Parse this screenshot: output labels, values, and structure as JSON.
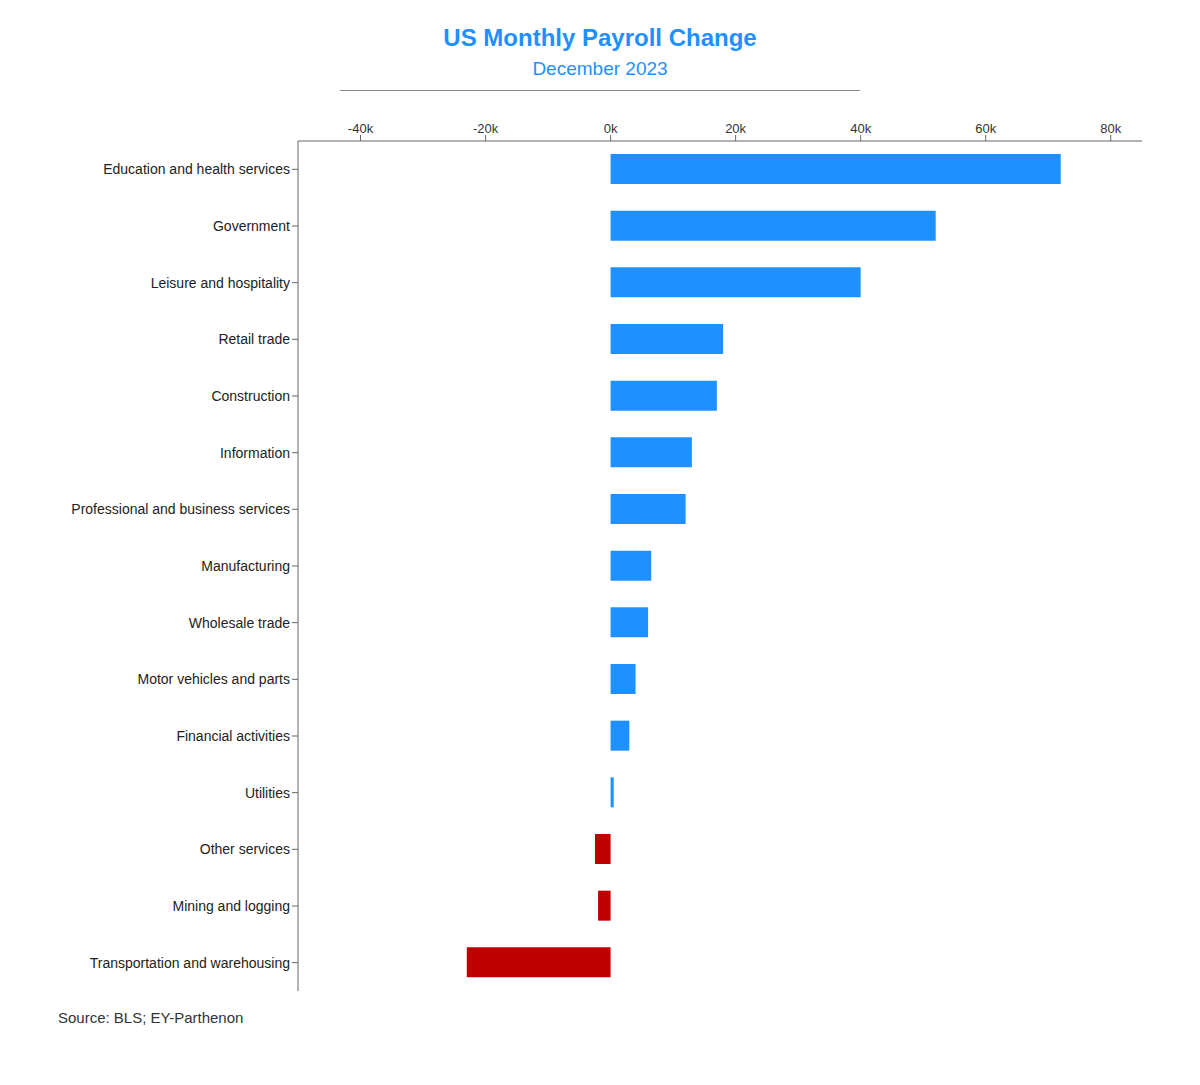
{
  "chart_data": {
    "type": "bar",
    "orientation": "horizontal",
    "title": "US Monthly Payroll Change",
    "subtitle": "December 2023",
    "annotation": "Source: BLS; EY-Parthenon",
    "categories": [
      "Transportation and warehousing",
      "Mining and logging",
      "Other services",
      "Utilities",
      "Financial activities",
      "Motor vehicles and parts",
      "Wholesale trade",
      "Manufacturing",
      "Professional and business services",
      "Information",
      "Construction",
      "Retail trade",
      "Leisure and hospitality",
      "Government",
      "Education and health services"
    ],
    "values": [
      -23000,
      -2000,
      -2500,
      500,
      3000,
      4000,
      6000,
      6500,
      12000,
      13000,
      17000,
      18000,
      40000,
      52000,
      72000
    ],
    "colors": [
      "#C00000",
      "#C00000",
      "#C00000",
      "#1E90FF",
      "#1E90FF",
      "#1E90FF",
      "#1E90FF",
      "#1E90FF",
      "#1E90FF",
      "#1E90FF",
      "#1E90FF",
      "#1E90FF",
      "#1E90FF",
      "#1E90FF",
      "#1E90FF"
    ],
    "xlim": [
      -50000,
      85000
    ],
    "xticks": [
      {
        "value": -40000,
        "label": "-40k"
      },
      {
        "value": -20000,
        "label": "-20k"
      },
      {
        "value": 0,
        "label": "0k"
      },
      {
        "value": 20000,
        "label": "20k"
      },
      {
        "value": 40000,
        "label": "40k"
      },
      {
        "value": 60000,
        "label": "60k"
      },
      {
        "value": 80000,
        "label": "80k"
      }
    ],
    "title_color": "#1E90FF",
    "grid": false
  }
}
